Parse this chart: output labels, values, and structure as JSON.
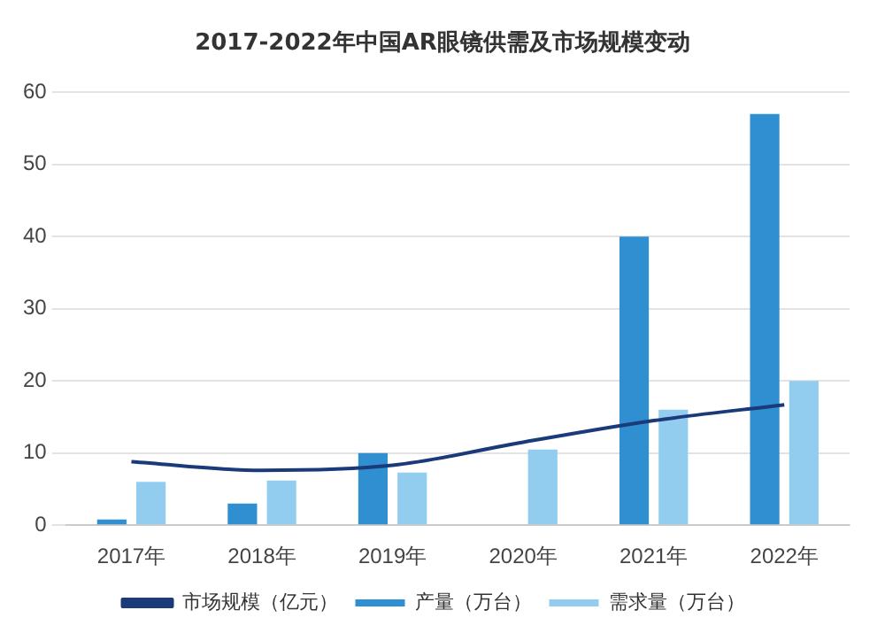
{
  "chart_data": {
    "type": "bar",
    "title": "2017-2022年中国AR眼镜供需及市场规模变动",
    "categories": [
      "2017年",
      "2018年",
      "2019年",
      "2020年",
      "2021年",
      "2022年"
    ],
    "series": [
      {
        "name": "产量（万台）",
        "color": "#2f8fd0",
        "values": [
          0.8,
          3,
          10,
          null,
          40,
          57
        ]
      },
      {
        "name": "需求量（万台）",
        "color": "#92cdf0",
        "values": [
          6,
          6.2,
          7.3,
          10.5,
          16,
          20
        ]
      },
      {
        "name": "市场规模（亿元）",
        "type": "line",
        "color": "#1a3a7a",
        "marker": "none",
        "values": [
          8.8,
          7.6,
          8.3,
          11.5,
          14.5,
          16.7
        ]
      }
    ],
    "ylim": [
      0,
      60
    ],
    "yticks": [
      0,
      10,
      20,
      30,
      40,
      50,
      60
    ],
    "grid": "y",
    "legend": "bottom"
  }
}
